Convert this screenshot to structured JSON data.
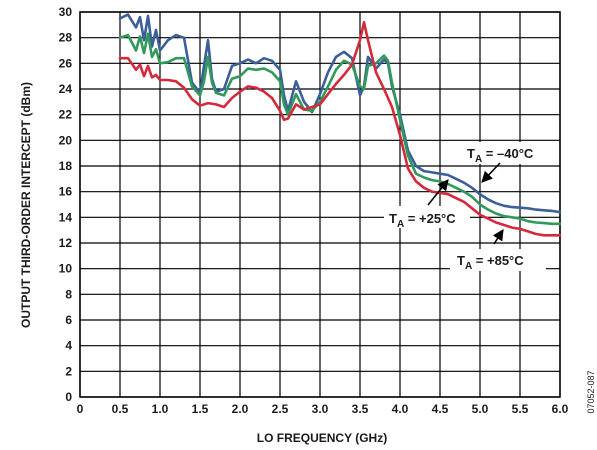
{
  "chart_data": {
    "type": "line",
    "xlabel": "LO FREQUENCY (GHz)",
    "ylabel": "OUTPUT THIRD-ORDER INTERCEPT (dBm)",
    "xlim": [
      0,
      6.0
    ],
    "ylim": [
      0,
      30
    ],
    "x_ticks": [
      "0",
      "0.5",
      "1.0",
      "1.5",
      "2.0",
      "2.5",
      "3.0",
      "3.5",
      "4.0",
      "4.5",
      "5.0",
      "5.5",
      "6.0"
    ],
    "y_ticks": [
      "0",
      "2",
      "4",
      "6",
      "8",
      "10",
      "12",
      "14",
      "16",
      "18",
      "20",
      "22",
      "24",
      "26",
      "28",
      "30"
    ],
    "grid": true,
    "figure_number": "07052-087",
    "annotations": [
      {
        "prefix": "T",
        "sub": "A",
        "suffix": " = –40°C"
      },
      {
        "prefix": "T",
        "sub": "A",
        "suffix": " = +25°C"
      },
      {
        "prefix": "T",
        "sub": "A",
        "suffix": " = +85°C"
      }
    ],
    "series": [
      {
        "color": "#3a5f9a",
        "points": [
          [
            0.5,
            29.5
          ],
          [
            0.6,
            29.8
          ],
          [
            0.7,
            28.8
          ],
          [
            0.75,
            29.6
          ],
          [
            0.8,
            27.8
          ],
          [
            0.85,
            29.7
          ],
          [
            0.9,
            27.3
          ],
          [
            0.95,
            28.6
          ],
          [
            1.0,
            27.0
          ],
          [
            1.1,
            27.8
          ],
          [
            1.2,
            28.2
          ],
          [
            1.3,
            28.0
          ],
          [
            1.4,
            24.5
          ],
          [
            1.5,
            23.7
          ],
          [
            1.55,
            25.8
          ],
          [
            1.6,
            27.8
          ],
          [
            1.65,
            24.8
          ],
          [
            1.7,
            23.8
          ],
          [
            1.8,
            24.0
          ],
          [
            1.9,
            25.8
          ],
          [
            2.0,
            26.0
          ],
          [
            2.1,
            26.3
          ],
          [
            2.2,
            26.0
          ],
          [
            2.3,
            26.4
          ],
          [
            2.4,
            26.2
          ],
          [
            2.5,
            25.5
          ],
          [
            2.55,
            23.5
          ],
          [
            2.6,
            22.3
          ],
          [
            2.7,
            24.6
          ],
          [
            2.8,
            23.0
          ],
          [
            2.9,
            22.2
          ],
          [
            3.0,
            23.6
          ],
          [
            3.1,
            25.3
          ],
          [
            3.2,
            26.5
          ],
          [
            3.3,
            26.9
          ],
          [
            3.4,
            26.4
          ],
          [
            3.5,
            23.5
          ],
          [
            3.55,
            24.2
          ],
          [
            3.6,
            26.5
          ],
          [
            3.7,
            25.6
          ],
          [
            3.8,
            26.3
          ],
          [
            3.85,
            26.0
          ],
          [
            3.9,
            24.2
          ],
          [
            4.0,
            22.0
          ],
          [
            4.1,
            19.2
          ],
          [
            4.2,
            18.0
          ],
          [
            4.3,
            17.6
          ],
          [
            4.4,
            17.5
          ],
          [
            4.5,
            17.4
          ],
          [
            4.6,
            17.3
          ],
          [
            4.7,
            17.0
          ],
          [
            4.8,
            16.7
          ],
          [
            4.9,
            16.3
          ],
          [
            5.0,
            15.8
          ],
          [
            5.1,
            15.4
          ],
          [
            5.2,
            15.1
          ],
          [
            5.3,
            14.9
          ],
          [
            5.4,
            14.8
          ],
          [
            5.5,
            14.75
          ],
          [
            5.6,
            14.7
          ],
          [
            5.7,
            14.6
          ],
          [
            5.8,
            14.55
          ],
          [
            5.9,
            14.5
          ],
          [
            6.0,
            14.4
          ]
        ]
      },
      {
        "color": "#2f9a5a",
        "points": [
          [
            0.5,
            28.0
          ],
          [
            0.6,
            28.2
          ],
          [
            0.7,
            27.0
          ],
          [
            0.75,
            28.1
          ],
          [
            0.8,
            26.8
          ],
          [
            0.85,
            28.3
          ],
          [
            0.9,
            26.5
          ],
          [
            0.95,
            27.1
          ],
          [
            1.0,
            26.0
          ],
          [
            1.1,
            26.1
          ],
          [
            1.2,
            26.4
          ],
          [
            1.3,
            26.4
          ],
          [
            1.4,
            24.2
          ],
          [
            1.5,
            23.5
          ],
          [
            1.55,
            24.6
          ],
          [
            1.6,
            26.5
          ],
          [
            1.65,
            24.5
          ],
          [
            1.7,
            23.7
          ],
          [
            1.8,
            23.5
          ],
          [
            1.9,
            24.8
          ],
          [
            2.0,
            25.0
          ],
          [
            2.1,
            25.6
          ],
          [
            2.2,
            25.5
          ],
          [
            2.3,
            25.6
          ],
          [
            2.4,
            25.3
          ],
          [
            2.5,
            24.6
          ],
          [
            2.55,
            22.8
          ],
          [
            2.6,
            22.0
          ],
          [
            2.7,
            23.6
          ],
          [
            2.8,
            22.4
          ],
          [
            2.9,
            22.3
          ],
          [
            3.0,
            23.0
          ],
          [
            3.1,
            24.2
          ],
          [
            3.2,
            25.5
          ],
          [
            3.3,
            26.2
          ],
          [
            3.4,
            25.9
          ],
          [
            3.5,
            24.2
          ],
          [
            3.55,
            24.0
          ],
          [
            3.6,
            25.8
          ],
          [
            3.7,
            26.0
          ],
          [
            3.8,
            26.6
          ],
          [
            3.85,
            26.2
          ],
          [
            3.9,
            24.5
          ],
          [
            4.0,
            21.6
          ],
          [
            4.1,
            18.8
          ],
          [
            4.2,
            17.4
          ],
          [
            4.3,
            17.1
          ],
          [
            4.4,
            16.9
          ],
          [
            4.5,
            16.8
          ],
          [
            4.6,
            16.6
          ],
          [
            4.7,
            16.3
          ],
          [
            4.8,
            16.0
          ],
          [
            4.9,
            15.6
          ],
          [
            5.0,
            15.0
          ],
          [
            5.1,
            14.6
          ],
          [
            5.2,
            14.3
          ],
          [
            5.3,
            14.1
          ],
          [
            5.4,
            14.0
          ],
          [
            5.5,
            13.9
          ],
          [
            5.6,
            13.7
          ],
          [
            5.7,
            13.6
          ],
          [
            5.8,
            13.55
          ],
          [
            5.9,
            13.5
          ],
          [
            6.0,
            13.5
          ]
        ]
      },
      {
        "color": "#d42a3c",
        "points": [
          [
            0.5,
            26.4
          ],
          [
            0.6,
            26.4
          ],
          [
            0.7,
            25.5
          ],
          [
            0.75,
            25.9
          ],
          [
            0.8,
            25.0
          ],
          [
            0.85,
            25.8
          ],
          [
            0.9,
            24.9
          ],
          [
            0.95,
            25.1
          ],
          [
            1.0,
            24.7
          ],
          [
            1.1,
            24.7
          ],
          [
            1.2,
            24.6
          ],
          [
            1.3,
            24.1
          ],
          [
            1.4,
            23.2
          ],
          [
            1.5,
            22.7
          ],
          [
            1.6,
            22.9
          ],
          [
            1.7,
            22.8
          ],
          [
            1.8,
            22.6
          ],
          [
            1.9,
            23.3
          ],
          [
            2.0,
            23.8
          ],
          [
            2.1,
            24.2
          ],
          [
            2.2,
            24.1
          ],
          [
            2.3,
            23.8
          ],
          [
            2.4,
            23.3
          ],
          [
            2.5,
            22.3
          ],
          [
            2.55,
            21.6
          ],
          [
            2.6,
            21.7
          ],
          [
            2.7,
            22.8
          ],
          [
            2.8,
            22.4
          ],
          [
            2.9,
            22.6
          ],
          [
            3.0,
            22.8
          ],
          [
            3.1,
            23.6
          ],
          [
            3.2,
            24.4
          ],
          [
            3.3,
            25.1
          ],
          [
            3.4,
            25.9
          ],
          [
            3.5,
            27.8
          ],
          [
            3.55,
            29.2
          ],
          [
            3.6,
            27.8
          ],
          [
            3.7,
            25.3
          ],
          [
            3.8,
            24.0
          ],
          [
            3.9,
            22.6
          ],
          [
            4.0,
            20.4
          ],
          [
            4.1,
            17.8
          ],
          [
            4.2,
            16.8
          ],
          [
            4.3,
            16.3
          ],
          [
            4.4,
            16.0
          ],
          [
            4.5,
            15.9
          ],
          [
            4.6,
            15.8
          ],
          [
            4.7,
            15.5
          ],
          [
            4.8,
            15.2
          ],
          [
            4.9,
            14.7
          ],
          [
            5.0,
            14.2
          ],
          [
            5.1,
            13.9
          ],
          [
            5.2,
            13.6
          ],
          [
            5.3,
            13.4
          ],
          [
            5.4,
            13.2
          ],
          [
            5.5,
            13.1
          ],
          [
            5.6,
            12.9
          ],
          [
            5.7,
            12.7
          ],
          [
            5.8,
            12.6
          ],
          [
            5.9,
            12.6
          ],
          [
            6.0,
            12.6
          ]
        ]
      }
    ]
  }
}
